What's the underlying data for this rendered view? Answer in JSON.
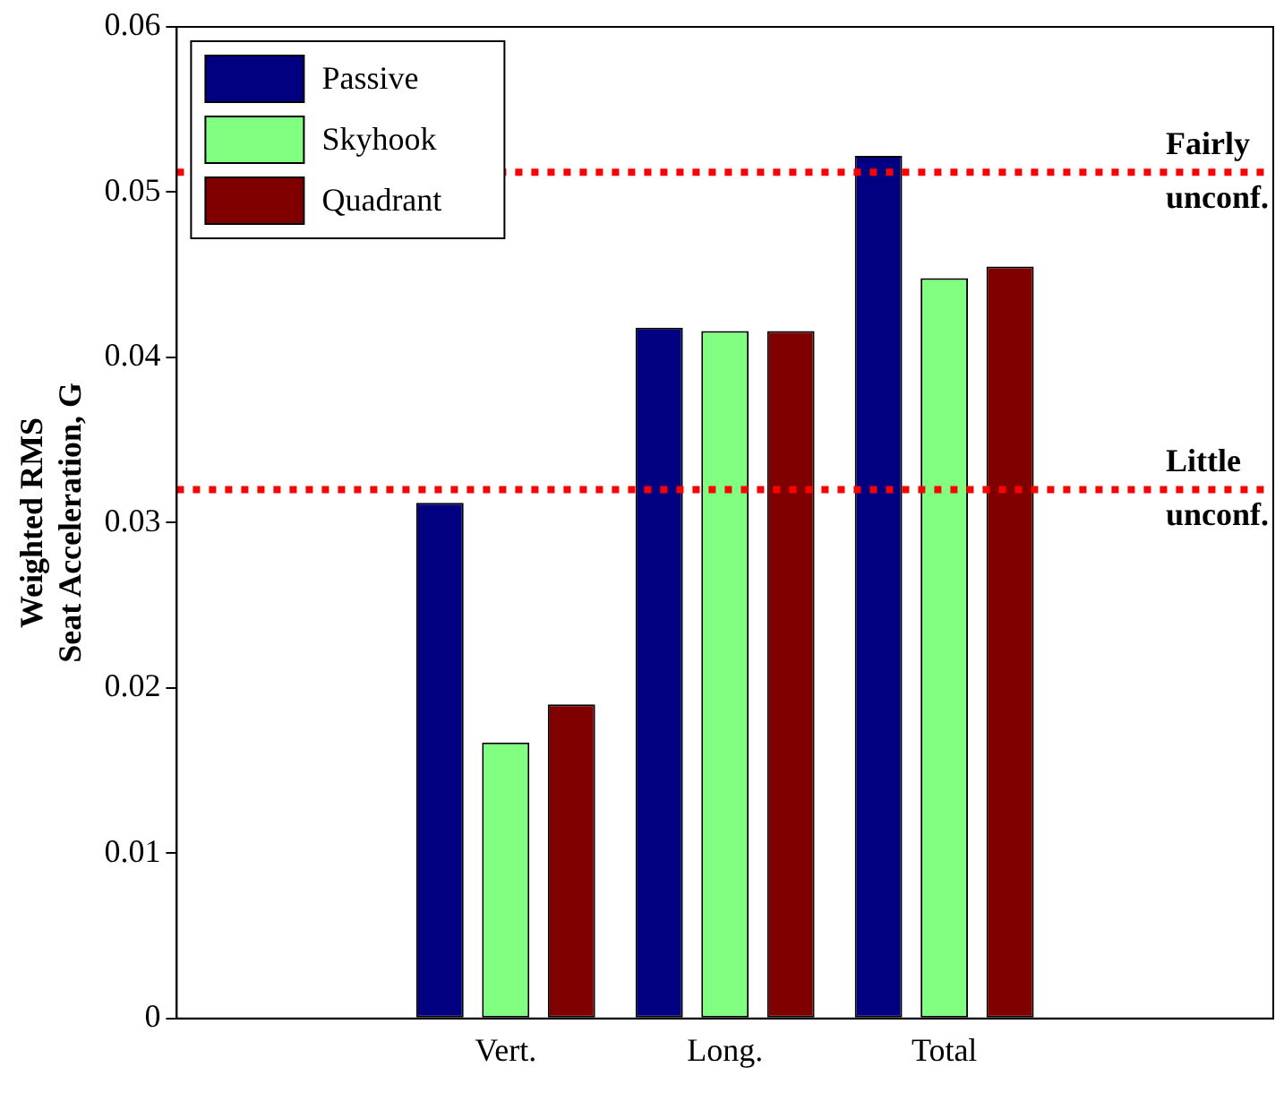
{
  "chart_data": {
    "type": "bar",
    "ylabel": "Weighted RMS\nSeat Acceleration, G",
    "categories": [
      "Vert.",
      "Long.",
      "Total"
    ],
    "series": [
      {
        "name": "Passive",
        "color": "#000080",
        "values": [
          0.0312,
          0.0418,
          0.0522
        ]
      },
      {
        "name": "Skyhook",
        "color": "#80ff80",
        "values": [
          0.0167,
          0.0416,
          0.0448
        ]
      },
      {
        "name": "Quadrant",
        "color": "#800000",
        "values": [
          0.019,
          0.0416,
          0.0455
        ]
      }
    ],
    "ylim": [
      0,
      0.06
    ],
    "yticks": [
      0,
      0.01,
      0.02,
      0.03,
      0.04,
      0.05,
      0.06
    ],
    "grid": false,
    "legend": "top left",
    "ref_lines": [
      {
        "axis": "y",
        "value": 0.0512,
        "label": "Fairly\nunconf.",
        "color": "#ff0000",
        "line_style": "dotted"
      },
      {
        "axis": "y",
        "value": 0.032,
        "label": "Little\nunconf.",
        "color": "#ff0000",
        "line_style": "dotted"
      }
    ]
  }
}
